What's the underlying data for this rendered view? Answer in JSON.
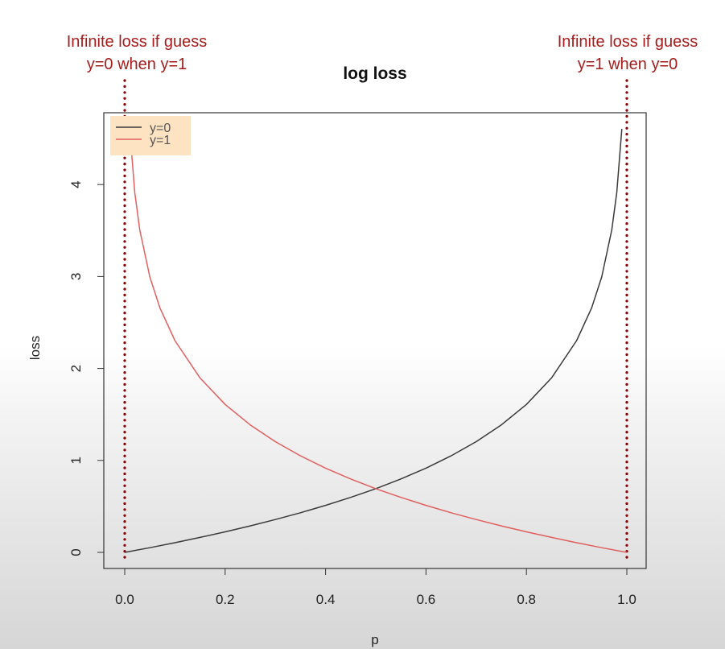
{
  "chart_data": {
    "type": "line",
    "title": "log loss",
    "xlabel": "p",
    "ylabel": "loss",
    "xlim": [
      0.0,
      1.0
    ],
    "ylim": [
      0,
      4.6
    ],
    "x_ticks": [
      "0.0",
      "0.2",
      "0.4",
      "0.6",
      "0.8",
      "1.0"
    ],
    "y_ticks": [
      "0",
      "1",
      "2",
      "3",
      "4"
    ],
    "legend_position": "top-left",
    "legend_background": "#fde3c2",
    "series": [
      {
        "name": "y=0",
        "color": "#3a3a3a",
        "x": [
          0.0,
          0.05,
          0.1,
          0.15,
          0.2,
          0.25,
          0.3,
          0.35,
          0.4,
          0.45,
          0.5,
          0.55,
          0.6,
          0.65,
          0.7,
          0.75,
          0.8,
          0.85,
          0.9,
          0.93,
          0.95,
          0.97,
          0.98,
          0.99
        ],
        "values": [
          0.0,
          0.051,
          0.105,
          0.163,
          0.223,
          0.288,
          0.357,
          0.431,
          0.511,
          0.598,
          0.693,
          0.799,
          0.916,
          1.05,
          1.204,
          1.386,
          1.609,
          1.897,
          2.303,
          2.659,
          2.996,
          3.507,
          3.912,
          4.605
        ]
      },
      {
        "name": "y=1",
        "color": "#e06060",
        "x": [
          0.01,
          0.02,
          0.03,
          0.05,
          0.07,
          0.1,
          0.15,
          0.2,
          0.25,
          0.3,
          0.35,
          0.4,
          0.45,
          0.5,
          0.55,
          0.6,
          0.65,
          0.7,
          0.75,
          0.8,
          0.85,
          0.9,
          0.95,
          1.0
        ],
        "values": [
          4.605,
          3.912,
          3.507,
          2.996,
          2.659,
          2.303,
          1.897,
          1.609,
          1.386,
          1.204,
          1.05,
          0.916,
          0.799,
          0.693,
          0.598,
          0.511,
          0.431,
          0.357,
          0.288,
          0.223,
          0.163,
          0.105,
          0.051,
          0.0
        ]
      }
    ],
    "vlines": [
      {
        "x": 0.0,
        "color": "#8b0000",
        "style": "dotted"
      },
      {
        "x": 1.0,
        "color": "#8b0000",
        "style": "dotted"
      }
    ],
    "annotations": [
      {
        "line1": "Infinite loss if guess",
        "line2": "y=0 when y=1",
        "color": "#a61c1c"
      },
      {
        "line1": "Infinite loss if guess",
        "line2": "y=1 when y=0",
        "color": "#a61c1c"
      }
    ]
  }
}
